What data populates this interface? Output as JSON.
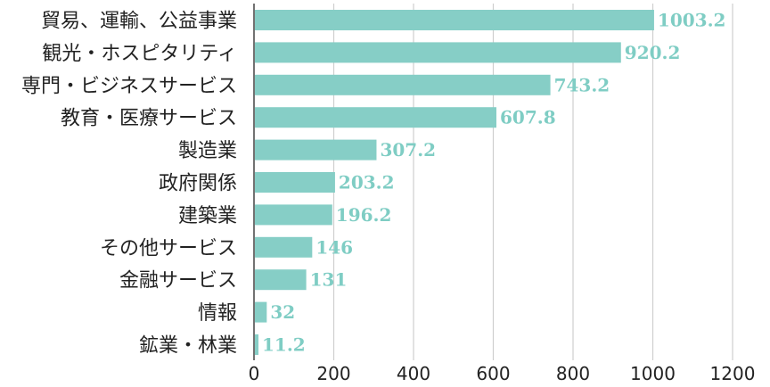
{
  "chart_data": {
    "type": "bar",
    "orientation": "horizontal",
    "categories": [
      "貿易、運輸、公益事業",
      "観光・ホスピタリティ",
      "専門・ビジネスサービス",
      "教育・医療サービス",
      "製造業",
      "政府関係",
      "建築業",
      "その他サービス",
      "金融サービス",
      "情報",
      "鉱業・林業"
    ],
    "values": [
      1003.2,
      920.2,
      743.2,
      607.8,
      307.2,
      203.2,
      196.2,
      146,
      131,
      32,
      11.2
    ],
    "value_labels": [
      "1003.2",
      "920.2",
      "743.2",
      "607.8",
      "307.2",
      "203.2",
      "196.2",
      "146",
      "131",
      "32",
      "11.2"
    ],
    "xticks": [
      0,
      200,
      400,
      600,
      800,
      1000,
      1200
    ],
    "xlim": [
      0,
      1200
    ],
    "grid": "vertical",
    "legend": "none",
    "title": "",
    "xlabel": "",
    "ylabel": "",
    "colors": {
      "bar": "#86cec6",
      "value_label": "#7fcdc4",
      "grid": "#cfcfcf",
      "axis": "#444444",
      "text": "#222222"
    }
  }
}
